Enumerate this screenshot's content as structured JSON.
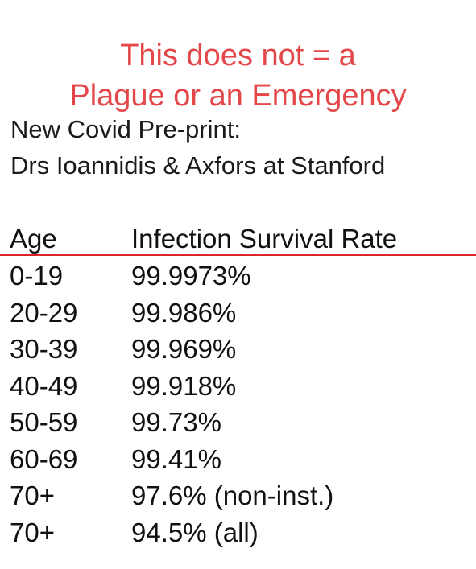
{
  "header": {
    "title_lines": [
      "This does not = a",
      "Plague or an Emergency"
    ],
    "subtitle_lines": [
      "New Covid Pre-print:",
      "Drs Ioannidis & Axfors at Stanford"
    ]
  },
  "table": {
    "columns": [
      "Age",
      "Infection Survival Rate"
    ],
    "rows": [
      [
        "0-19",
        "99.9973%"
      ],
      [
        "20-29",
        "99.986%"
      ],
      [
        "30-39",
        "99.969%"
      ],
      [
        "40-49",
        "99.918%"
      ],
      [
        "50-59",
        "99.73%"
      ],
      [
        "60-69",
        "99.41%"
      ],
      [
        "70+",
        "97.6% (non-inst.)"
      ],
      [
        "70+",
        "94.5% (all)"
      ]
    ]
  }
}
